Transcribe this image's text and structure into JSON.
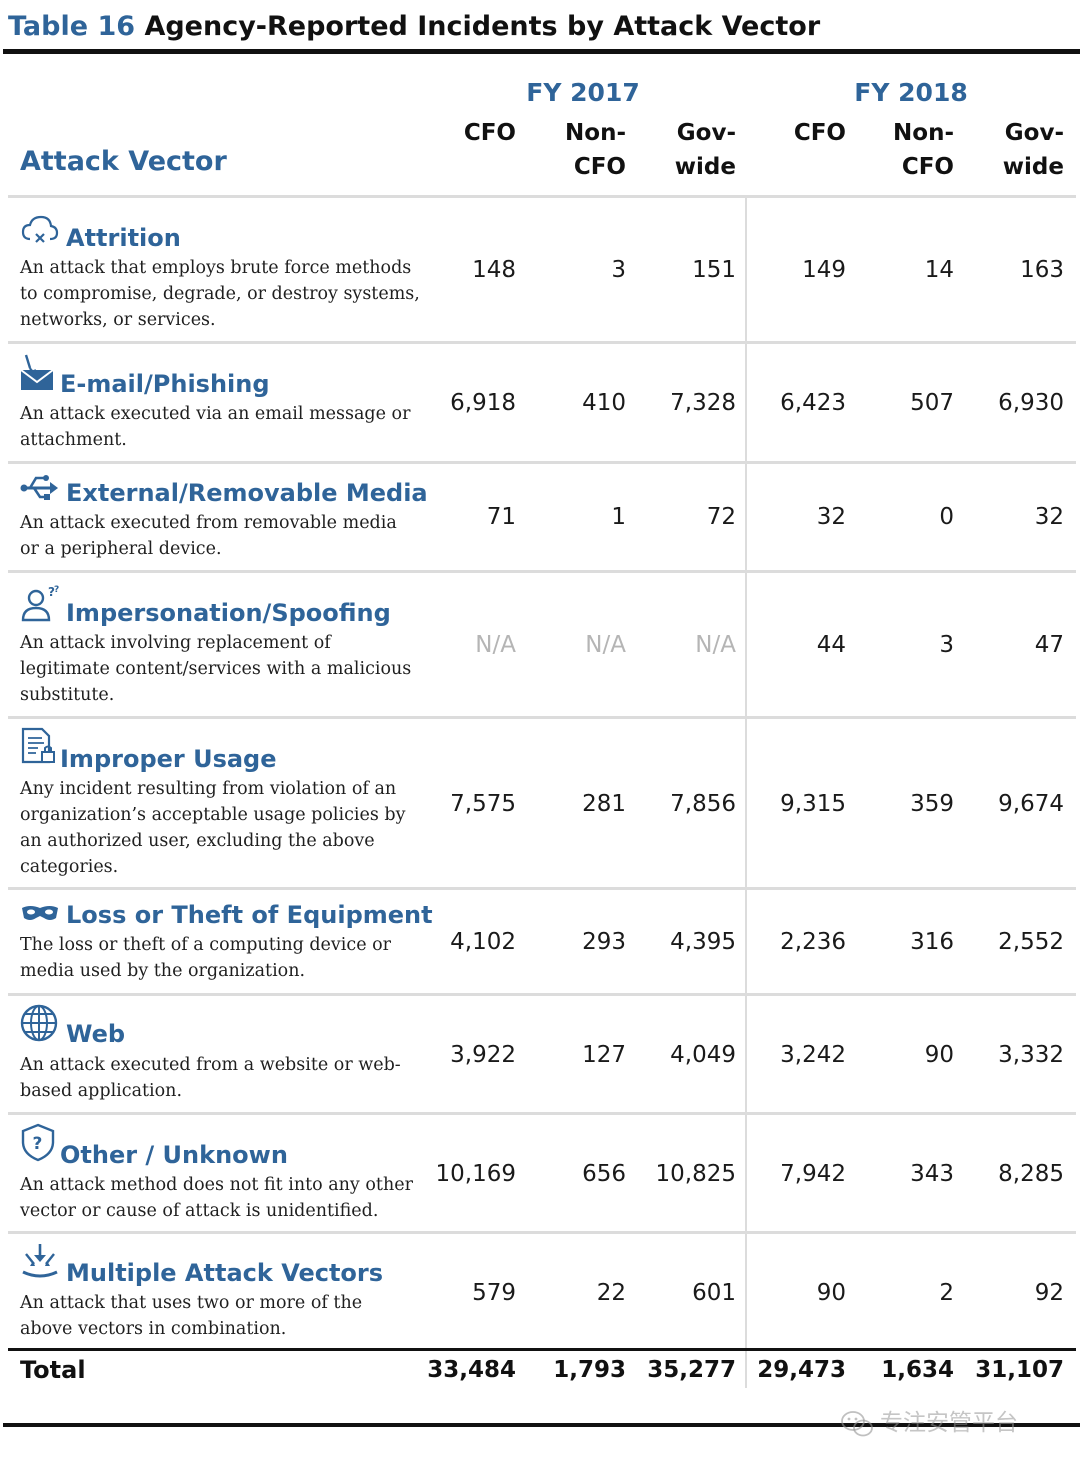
{
  "title": {
    "number": "Table 16",
    "text": "Agency-Reported Incidents by Attack Vector"
  },
  "header": {
    "attack_vector_label": "Attack Vector",
    "fy2017": "FY 2017",
    "fy2018": "FY 2018",
    "columns": [
      {
        "line1": "",
        "line2": "CFO"
      },
      {
        "line1": "Non-",
        "line2": "CFO"
      },
      {
        "line1": "Gov-",
        "line2": "wide"
      },
      {
        "line1": "",
        "line2": "CFO"
      },
      {
        "line1": "Non-",
        "line2": "CFO"
      },
      {
        "line1": "Gov-",
        "line2": "wide"
      }
    ]
  },
  "rows": [
    {
      "icon": "cloud-x-icon",
      "name": "Attrition",
      "desc": "An attack that employs brute force methods to compromise, degrade, or destroy systems, networks, or services.",
      "values": [
        "148",
        "3",
        "151",
        "149",
        "14",
        "163"
      ]
    },
    {
      "icon": "envelope-hook-icon",
      "name": "E-mail/Phishing",
      "desc": "An attack executed via an email message or attachment.",
      "values": [
        "6,918",
        "410",
        "7,328",
        "6,423",
        "507",
        "6,930"
      ]
    },
    {
      "icon": "usb-icon",
      "name": "External/Removable Media",
      "desc": "An attack executed from removable media or a peripheral device.",
      "values": [
        "71",
        "1",
        "72",
        "32",
        "0",
        "32"
      ]
    },
    {
      "icon": "user-question-icon",
      "name": "Impersonation/Spoofing",
      "desc": "An attack involving replacement of legitimate content/services with a malicious substitute.",
      "values": [
        "N/A",
        "N/A",
        "N/A",
        "44",
        "3",
        "47"
      ]
    },
    {
      "icon": "document-lock-icon",
      "name": "Improper Usage",
      "desc": "Any incident resulting from violation of an organization’s acceptable usage policies by an authorized user, excluding the above categories.",
      "values": [
        "7,575",
        "281",
        "7,856",
        "9,315",
        "359",
        "9,674"
      ]
    },
    {
      "icon": "mask-icon",
      "name": "Loss or Theft of Equipment",
      "desc": "The loss or theft of a computing device or media used by the organization.",
      "values": [
        "4,102",
        "293",
        "4,395",
        "2,236",
        "316",
        "2,552"
      ]
    },
    {
      "icon": "globe-icon",
      "name": "Web",
      "desc": "An attack executed from a website or web-based application.",
      "values": [
        "3,922",
        "127",
        "4,049",
        "3,242",
        "90",
        "3,332"
      ]
    },
    {
      "icon": "shield-question-icon",
      "name": "Other / Unknown",
      "desc": "An attack method does not fit into any other vector or cause of attack is unidentified.",
      "values": [
        "10,169",
        "656",
        "10,825",
        "7,942",
        "343",
        "8,285"
      ]
    },
    {
      "icon": "converging-arrows-icon",
      "name": "Multiple Attack Vectors",
      "desc": "An attack that uses two or more of the above vectors in combination.",
      "values": [
        "579",
        "22",
        "601",
        "90",
        "2",
        "92"
      ]
    }
  ],
  "total": {
    "label": "Total",
    "values": [
      "33,484",
      "1,793",
      "35,277",
      "29,473",
      "1,634",
      "31,107"
    ]
  },
  "watermark": {
    "text": "专注安管平台",
    "icon": "wechat-icon"
  },
  "colors": {
    "accent": "#2f6499",
    "na": "#b5b5b5",
    "rule": "#dcdcdc"
  }
}
